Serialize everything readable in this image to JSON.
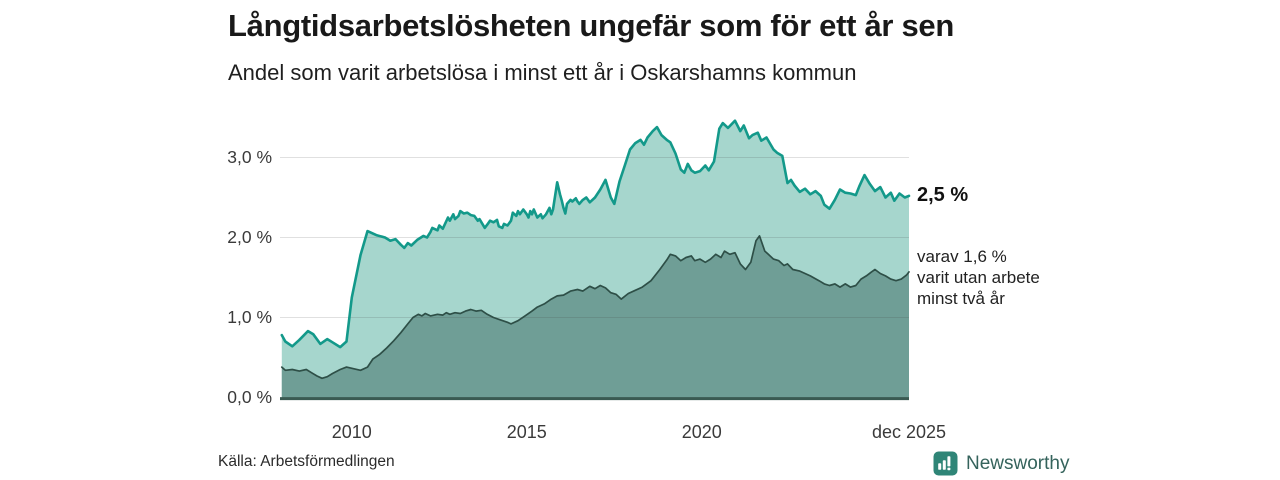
{
  "header": {
    "title": "Långtidsarbetslösheten ungefär som för ett år sen",
    "subtitle": "Andel som varit arbetslösa i minst ett år i Oskarshamns kommun"
  },
  "annotations": {
    "latest_total": "2,5 %",
    "secondary_lines": [
      "varav 1,6 %",
      "varit utan arbete",
      "minst två år"
    ]
  },
  "footer": {
    "source": "Källa: Arbetsförmedlingen",
    "brand": "Newsworthy",
    "brand_icon": "newsworthy-bars-logo-icon"
  },
  "colors": {
    "accent_teal": "#13998a",
    "light_fill": "#a6d6cd",
    "dark_fill": "#6f9e96",
    "dark_line": "#2e4f47",
    "axis_line": "#3a5a52",
    "logo_teal": "#2f8577"
  },
  "chart_data": {
    "type": "area",
    "title": "Långtidsarbetslösheten ungefär som för ett år sen",
    "subtitle": "Andel som varit arbetslösa i minst ett år i Oskarshamns kommun",
    "unit": "%",
    "x_axis": {
      "range": [
        2007.95,
        2025.92
      ],
      "ticks": [
        {
          "label": "2010",
          "year": 2010
        },
        {
          "label": "2015",
          "year": 2015
        },
        {
          "label": "2020",
          "year": 2020
        },
        {
          "label": "dec 2025",
          "year": 2025.92
        }
      ]
    },
    "y_axis": {
      "range": [
        0,
        3.6
      ],
      "ticks": [
        {
          "label": "0,0 %",
          "value": 0
        },
        {
          "label": "1,0 %",
          "value": 1
        },
        {
          "label": "2,0 %",
          "value": 2
        },
        {
          "label": "3,0 %",
          "value": 3
        }
      ],
      "gridlines": [
        1,
        2,
        3
      ]
    },
    "legend_position": "right-of-line-ends",
    "series": [
      {
        "id": "minst-ett-ar",
        "name": "Andel arbetslösa i minst ett år",
        "end_label": "2,5 %",
        "end_value": 2.5,
        "fill": "#a6d6cd",
        "line_color": "#13998a",
        "line_width": 2.6,
        "points": [
          [
            2008.0,
            0.78
          ],
          [
            2008.1,
            0.7
          ],
          [
            2008.3,
            0.64
          ],
          [
            2008.5,
            0.72
          ],
          [
            2008.75,
            0.83
          ],
          [
            2008.9,
            0.79
          ],
          [
            2009.1,
            0.67
          ],
          [
            2009.3,
            0.73
          ],
          [
            2009.45,
            0.69
          ],
          [
            2009.67,
            0.63
          ],
          [
            2009.85,
            0.7
          ],
          [
            2010.0,
            1.25
          ],
          [
            2010.25,
            1.78
          ],
          [
            2010.45,
            2.08
          ],
          [
            2010.7,
            2.03
          ],
          [
            2010.95,
            2.0
          ],
          [
            2011.1,
            1.96
          ],
          [
            2011.25,
            1.98
          ],
          [
            2011.4,
            1.91
          ],
          [
            2011.5,
            1.87
          ],
          [
            2011.6,
            1.93
          ],
          [
            2011.7,
            1.9
          ],
          [
            2011.87,
            1.97
          ],
          [
            2012.05,
            2.02
          ],
          [
            2012.15,
            2.0
          ],
          [
            2012.25,
            2.07
          ],
          [
            2012.3,
            2.12
          ],
          [
            2012.45,
            2.09
          ],
          [
            2012.5,
            2.15
          ],
          [
            2012.6,
            2.11
          ],
          [
            2012.75,
            2.25
          ],
          [
            2012.8,
            2.21
          ],
          [
            2012.9,
            2.29
          ],
          [
            2012.95,
            2.23
          ],
          [
            2013.05,
            2.27
          ],
          [
            2013.1,
            2.33
          ],
          [
            2013.2,
            2.3
          ],
          [
            2013.3,
            2.31
          ],
          [
            2013.4,
            2.28
          ],
          [
            2013.5,
            2.27
          ],
          [
            2013.6,
            2.21
          ],
          [
            2013.65,
            2.23
          ],
          [
            2013.8,
            2.12
          ],
          [
            2013.87,
            2.16
          ],
          [
            2013.95,
            2.21
          ],
          [
            2014.05,
            2.19
          ],
          [
            2014.15,
            2.22
          ],
          [
            2014.2,
            2.14
          ],
          [
            2014.3,
            2.12
          ],
          [
            2014.35,
            2.17
          ],
          [
            2014.45,
            2.15
          ],
          [
            2014.55,
            2.21
          ],
          [
            2014.6,
            2.31
          ],
          [
            2014.7,
            2.27
          ],
          [
            2014.75,
            2.33
          ],
          [
            2014.8,
            2.29
          ],
          [
            2014.9,
            2.35
          ],
          [
            2015.0,
            2.29
          ],
          [
            2015.05,
            2.25
          ],
          [
            2015.1,
            2.33
          ],
          [
            2015.15,
            2.29
          ],
          [
            2015.2,
            2.35
          ],
          [
            2015.3,
            2.25
          ],
          [
            2015.4,
            2.29
          ],
          [
            2015.45,
            2.24
          ],
          [
            2015.55,
            2.29
          ],
          [
            2015.65,
            2.37
          ],
          [
            2015.7,
            2.29
          ],
          [
            2015.75,
            2.35
          ],
          [
            2015.87,
            2.69
          ],
          [
            2015.95,
            2.54
          ],
          [
            2016.0,
            2.46
          ],
          [
            2016.05,
            2.37
          ],
          [
            2016.1,
            2.3
          ],
          [
            2016.15,
            2.42
          ],
          [
            2016.25,
            2.47
          ],
          [
            2016.3,
            2.45
          ],
          [
            2016.4,
            2.49
          ],
          [
            2016.45,
            2.45
          ],
          [
            2016.5,
            2.42
          ],
          [
            2016.6,
            2.47
          ],
          [
            2016.7,
            2.5
          ],
          [
            2016.8,
            2.44
          ],
          [
            2016.95,
            2.5
          ],
          [
            2017.1,
            2.6
          ],
          [
            2017.25,
            2.72
          ],
          [
            2017.4,
            2.5
          ],
          [
            2017.5,
            2.42
          ],
          [
            2017.65,
            2.7
          ],
          [
            2017.8,
            2.9
          ],
          [
            2017.95,
            3.1
          ],
          [
            2018.1,
            3.18
          ],
          [
            2018.25,
            3.22
          ],
          [
            2018.35,
            3.16
          ],
          [
            2018.45,
            3.25
          ],
          [
            2018.6,
            3.33
          ],
          [
            2018.72,
            3.38
          ],
          [
            2018.85,
            3.28
          ],
          [
            2019.0,
            3.22
          ],
          [
            2019.1,
            3.19
          ],
          [
            2019.25,
            3.05
          ],
          [
            2019.4,
            2.85
          ],
          [
            2019.5,
            2.81
          ],
          [
            2019.6,
            2.92
          ],
          [
            2019.7,
            2.84
          ],
          [
            2019.8,
            2.81
          ],
          [
            2019.95,
            2.83
          ],
          [
            2020.1,
            2.9
          ],
          [
            2020.2,
            2.84
          ],
          [
            2020.35,
            2.95
          ],
          [
            2020.5,
            3.36
          ],
          [
            2020.6,
            3.43
          ],
          [
            2020.75,
            3.37
          ],
          [
            2020.95,
            3.46
          ],
          [
            2021.1,
            3.33
          ],
          [
            2021.2,
            3.4
          ],
          [
            2021.35,
            3.24
          ],
          [
            2021.45,
            3.28
          ],
          [
            2021.6,
            3.31
          ],
          [
            2021.7,
            3.21
          ],
          [
            2021.85,
            3.25
          ],
          [
            2022.05,
            3.1
          ],
          [
            2022.15,
            3.06
          ],
          [
            2022.3,
            3.02
          ],
          [
            2022.45,
            2.68
          ],
          [
            2022.55,
            2.72
          ],
          [
            2022.65,
            2.65
          ],
          [
            2022.8,
            2.57
          ],
          [
            2022.95,
            2.61
          ],
          [
            2023.1,
            2.54
          ],
          [
            2023.25,
            2.58
          ],
          [
            2023.4,
            2.52
          ],
          [
            2023.5,
            2.41
          ],
          [
            2023.65,
            2.36
          ],
          [
            2023.8,
            2.47
          ],
          [
            2023.95,
            2.6
          ],
          [
            2024.1,
            2.56
          ],
          [
            2024.25,
            2.55
          ],
          [
            2024.4,
            2.53
          ],
          [
            2024.5,
            2.64
          ],
          [
            2024.65,
            2.78
          ],
          [
            2024.8,
            2.67
          ],
          [
            2024.95,
            2.58
          ],
          [
            2025.1,
            2.63
          ],
          [
            2025.25,
            2.5
          ],
          [
            2025.4,
            2.56
          ],
          [
            2025.5,
            2.46
          ],
          [
            2025.65,
            2.55
          ],
          [
            2025.8,
            2.5
          ],
          [
            2025.92,
            2.52
          ]
        ]
      },
      {
        "id": "minst-tva-ar",
        "name": "varav utan arbete minst två år",
        "end_label": "varav 1,6 % varit utan arbete minst två år",
        "end_value": 1.6,
        "fill": "#6f9e96",
        "line_color": "#2e4f47",
        "line_width": 1.7,
        "points": [
          [
            2008.0,
            0.38
          ],
          [
            2008.1,
            0.34
          ],
          [
            2008.3,
            0.35
          ],
          [
            2008.5,
            0.33
          ],
          [
            2008.7,
            0.35
          ],
          [
            2008.85,
            0.31
          ],
          [
            2009.0,
            0.27
          ],
          [
            2009.15,
            0.24
          ],
          [
            2009.3,
            0.26
          ],
          [
            2009.45,
            0.3
          ],
          [
            2009.67,
            0.35
          ],
          [
            2009.85,
            0.38
          ],
          [
            2010.05,
            0.36
          ],
          [
            2010.25,
            0.34
          ],
          [
            2010.45,
            0.38
          ],
          [
            2010.6,
            0.48
          ],
          [
            2010.8,
            0.54
          ],
          [
            2011.0,
            0.62
          ],
          [
            2011.2,
            0.71
          ],
          [
            2011.4,
            0.81
          ],
          [
            2011.6,
            0.92
          ],
          [
            2011.75,
            1.0
          ],
          [
            2011.9,
            1.04
          ],
          [
            2012.0,
            1.02
          ],
          [
            2012.1,
            1.05
          ],
          [
            2012.25,
            1.02
          ],
          [
            2012.45,
            1.04
          ],
          [
            2012.6,
            1.03
          ],
          [
            2012.7,
            1.06
          ],
          [
            2012.8,
            1.04
          ],
          [
            2012.95,
            1.06
          ],
          [
            2013.1,
            1.05
          ],
          [
            2013.25,
            1.08
          ],
          [
            2013.4,
            1.1
          ],
          [
            2013.55,
            1.08
          ],
          [
            2013.7,
            1.09
          ],
          [
            2013.87,
            1.04
          ],
          [
            2014.05,
            1.0
          ],
          [
            2014.25,
            0.97
          ],
          [
            2014.45,
            0.94
          ],
          [
            2014.55,
            0.92
          ],
          [
            2014.75,
            0.96
          ],
          [
            2014.95,
            1.02
          ],
          [
            2015.15,
            1.08
          ],
          [
            2015.3,
            1.13
          ],
          [
            2015.5,
            1.17
          ],
          [
            2015.7,
            1.23
          ],
          [
            2015.87,
            1.27
          ],
          [
            2016.05,
            1.28
          ],
          [
            2016.25,
            1.33
          ],
          [
            2016.45,
            1.35
          ],
          [
            2016.6,
            1.33
          ],
          [
            2016.8,
            1.39
          ],
          [
            2016.95,
            1.36
          ],
          [
            2017.1,
            1.4
          ],
          [
            2017.25,
            1.37
          ],
          [
            2017.4,
            1.31
          ],
          [
            2017.55,
            1.29
          ],
          [
            2017.7,
            1.23
          ],
          [
            2017.9,
            1.3
          ],
          [
            2018.1,
            1.34
          ],
          [
            2018.3,
            1.38
          ],
          [
            2018.55,
            1.46
          ],
          [
            2018.8,
            1.6
          ],
          [
            2019.0,
            1.72
          ],
          [
            2019.1,
            1.79
          ],
          [
            2019.25,
            1.77
          ],
          [
            2019.4,
            1.71
          ],
          [
            2019.55,
            1.75
          ],
          [
            2019.7,
            1.77
          ],
          [
            2019.8,
            1.71
          ],
          [
            2019.95,
            1.73
          ],
          [
            2020.1,
            1.69
          ],
          [
            2020.25,
            1.73
          ],
          [
            2020.4,
            1.79
          ],
          [
            2020.55,
            1.75
          ],
          [
            2020.65,
            1.83
          ],
          [
            2020.8,
            1.79
          ],
          [
            2020.95,
            1.81
          ],
          [
            2021.1,
            1.67
          ],
          [
            2021.25,
            1.6
          ],
          [
            2021.4,
            1.69
          ],
          [
            2021.55,
            1.96
          ],
          [
            2021.65,
            2.02
          ],
          [
            2021.8,
            1.83
          ],
          [
            2021.9,
            1.79
          ],
          [
            2022.05,
            1.73
          ],
          [
            2022.2,
            1.71
          ],
          [
            2022.35,
            1.65
          ],
          [
            2022.45,
            1.67
          ],
          [
            2022.6,
            1.6
          ],
          [
            2022.8,
            1.58
          ],
          [
            2023.1,
            1.52
          ],
          [
            2023.35,
            1.46
          ],
          [
            2023.5,
            1.42
          ],
          [
            2023.65,
            1.4
          ],
          [
            2023.8,
            1.42
          ],
          [
            2023.95,
            1.38
          ],
          [
            2024.1,
            1.42
          ],
          [
            2024.25,
            1.38
          ],
          [
            2024.4,
            1.4
          ],
          [
            2024.55,
            1.48
          ],
          [
            2024.7,
            1.52
          ],
          [
            2024.85,
            1.57
          ],
          [
            2024.95,
            1.6
          ],
          [
            2025.1,
            1.55
          ],
          [
            2025.25,
            1.52
          ],
          [
            2025.4,
            1.48
          ],
          [
            2025.55,
            1.46
          ],
          [
            2025.7,
            1.48
          ],
          [
            2025.85,
            1.53
          ],
          [
            2025.92,
            1.57
          ]
        ]
      }
    ]
  }
}
